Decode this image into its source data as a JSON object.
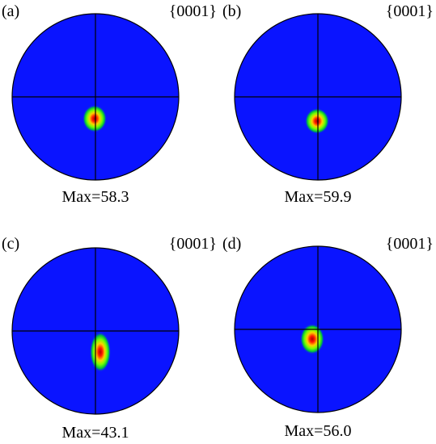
{
  "panels": [
    {
      "label": "(a)",
      "plane": "{0001}",
      "max": "Max=58.3"
    },
    {
      "label": "(b)",
      "plane": "{0001}",
      "max": "Max=59.9"
    },
    {
      "label": "(c)",
      "plane": "{0001}",
      "max": "Max=43.1"
    },
    {
      "label": "(d)",
      "plane": "{0001}",
      "max": "Max=56.0"
    }
  ]
}
